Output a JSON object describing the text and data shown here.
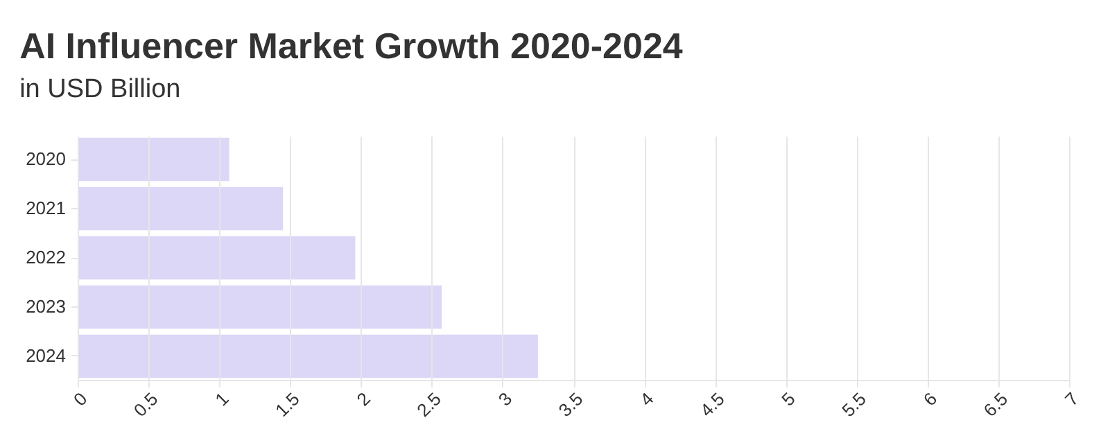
{
  "chart_data": {
    "type": "bar",
    "orientation": "horizontal",
    "title": "AI Influencer Market Growth 2020-2024",
    "subtitle": "in USD Billion",
    "categories": [
      "2020",
      "2021",
      "2022",
      "2023",
      "2024"
    ],
    "values": [
      1.07,
      1.45,
      1.96,
      2.57,
      3.25
    ],
    "color": "#dcd6f7",
    "xlim": [
      0,
      7
    ],
    "xticks": [
      0,
      0.5,
      1,
      1.5,
      2,
      2.5,
      3,
      3.5,
      4,
      4.5,
      5,
      5.5,
      6,
      6.5,
      7
    ],
    "grid": "x"
  }
}
